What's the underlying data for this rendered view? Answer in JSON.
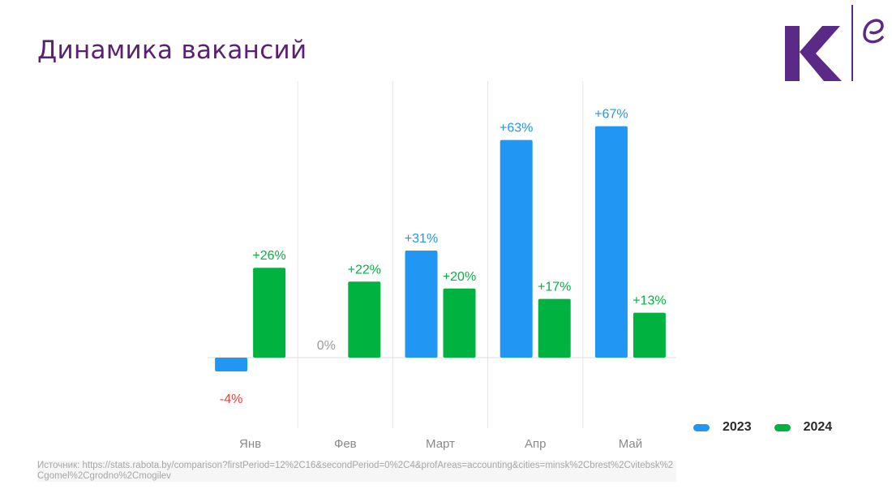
{
  "header": {
    "title": "Динамика вакансий"
  },
  "logo": {
    "icon": "company-logo-icon",
    "letter": "К",
    "accent": "#5b2a86"
  },
  "colors": {
    "series_2023": "#2196f3",
    "series_2024": "#00b341",
    "negative_label": "#f04040",
    "zero_label": "#9a9a9a",
    "title": "#5b1f73"
  },
  "chart_data": {
    "type": "bar",
    "categories": [
      "Янв",
      "Фев",
      "Март",
      "Апр",
      "Май"
    ],
    "series": [
      {
        "name": "2023",
        "values": [
          -4,
          0,
          31,
          63,
          67
        ],
        "labels": [
          "-4%",
          "0%",
          "+31%",
          "+63%",
          "+67%"
        ]
      },
      {
        "name": "2024",
        "values": [
          26,
          22,
          20,
          17,
          13
        ],
        "labels": [
          "+26%",
          "+22%",
          "+20%",
          "+17%",
          "+13%"
        ]
      }
    ],
    "ylim": [
      -20,
      75
    ],
    "grid": "vertical separators",
    "legend": "bottom-right"
  },
  "footer": {
    "source": "Источник: https://stats.rabota.by/comparison?firstPeriod=12%2C16&secondPeriod=0%2C4&profAreas=accounting&cities=minsk%2Cbrest%2Cvitebsk%2Cgomel%2Cgrodno%2Cmogilev"
  }
}
